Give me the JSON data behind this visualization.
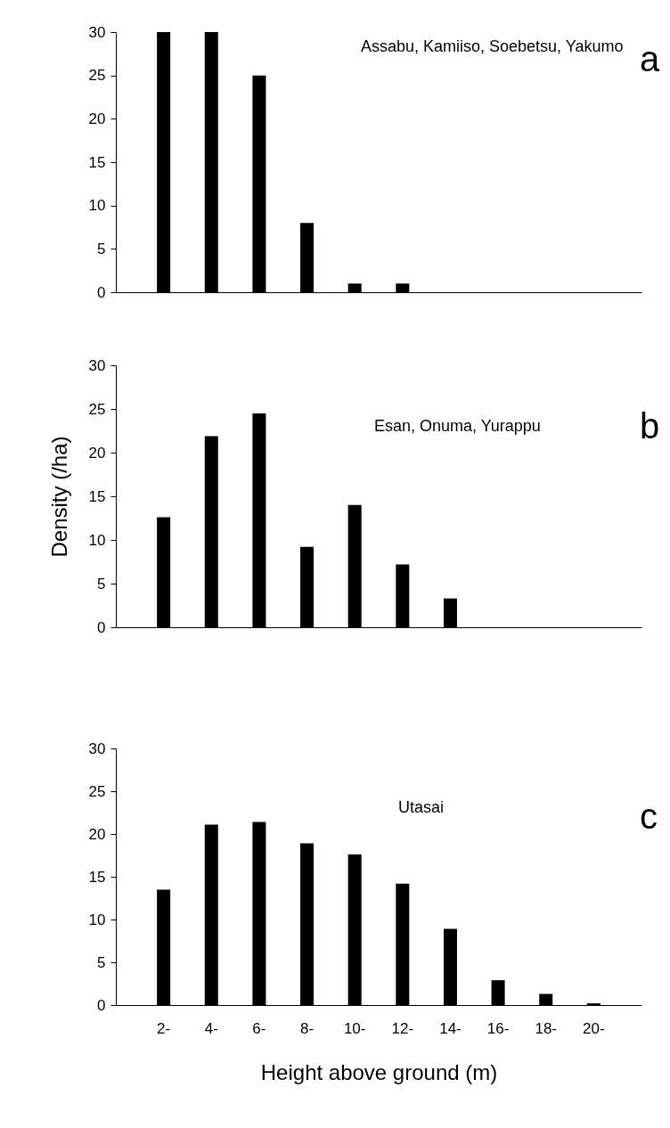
{
  "chart_data": [
    {
      "type": "bar",
      "categories": [
        null,
        null,
        null,
        null,
        null,
        null,
        null,
        null,
        null,
        null
      ],
      "values": [
        30,
        30,
        25,
        8,
        1,
        1,
        0,
        0,
        0,
        0
      ],
      "color": "#000000",
      "ylim": [
        0,
        30
      ],
      "yticks": [
        0,
        5,
        10,
        15,
        20,
        25,
        30
      ],
      "annotations": [
        "Assabu, Kamiiso, Soebetsu, Yakumo",
        "a"
      ]
    },
    {
      "type": "bar",
      "categories": [
        null,
        null,
        null,
        null,
        null,
        null,
        null,
        null,
        null,
        null
      ],
      "values": [
        12.6,
        21.9,
        24.5,
        9.2,
        14.0,
        7.2,
        3.3,
        0,
        0,
        0
      ],
      "color": "#000000",
      "ylabel": "Density (/ha)",
      "ylim": [
        0,
        30
      ],
      "yticks": [
        0,
        5,
        10,
        15,
        20,
        25,
        30
      ],
      "annotations": [
        "Esan, Onuma, Yurappu",
        "b"
      ]
    },
    {
      "type": "bar",
      "categories": [
        "2-",
        "4-",
        "6-",
        "8-",
        "10-",
        "12-",
        "14-",
        "16-",
        "18-",
        "20-"
      ],
      "values": [
        13.5,
        21.1,
        21.4,
        18.9,
        17.6,
        14.2,
        8.9,
        2.9,
        1.3,
        0.2
      ],
      "color": "#000000",
      "xlabel": "Height above ground (m)",
      "ylim": [
        0,
        30
      ],
      "yticks": [
        0,
        5,
        10,
        15,
        20,
        25,
        30
      ],
      "annotations": [
        "Utasai",
        "c"
      ]
    }
  ]
}
